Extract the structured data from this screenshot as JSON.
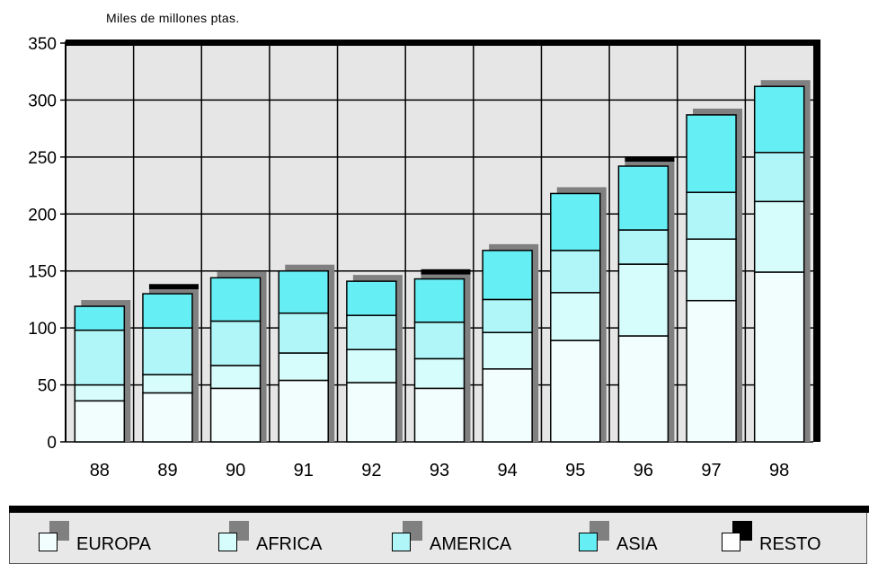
{
  "unit_label": "Miles de millones ptas.",
  "colors": {
    "EUROPA": "#f2fdfd",
    "AFRICA": "#d6fcfc",
    "AMERICA": "#b0f6f8",
    "ASIA": "#66eef5",
    "RESTO": "#ffffff",
    "shadow": "#808080",
    "resto_shadow": "#000000",
    "plot_bg": "#e6e6e6"
  },
  "chart_data": {
    "type": "bar",
    "stacked": true,
    "title": "",
    "ylabel": "Miles de millones ptas.",
    "xlabel": "",
    "categories": [
      "88",
      "89",
      "90",
      "91",
      "92",
      "93",
      "94",
      "95",
      "96",
      "97",
      "98"
    ],
    "ylim": [
      0,
      350
    ],
    "yticks": [
      0,
      50,
      100,
      150,
      200,
      250,
      300,
      350
    ],
    "grid": true,
    "legend_position": "bottom",
    "series": [
      {
        "name": "EUROPA",
        "values": [
          36,
          43,
          47,
          54,
          52,
          47,
          64,
          89,
          93,
          124,
          149
        ]
      },
      {
        "name": "AFRICA",
        "values": [
          14,
          16,
          20,
          24,
          29,
          26,
          32,
          42,
          63,
          54,
          62
        ]
      },
      {
        "name": "AMERICA",
        "values": [
          48,
          41,
          39,
          35,
          30,
          32,
          29,
          37,
          30,
          41,
          43
        ]
      },
      {
        "name": "ASIA",
        "values": [
          21,
          30,
          38,
          37,
          30,
          38,
          43,
          50,
          56,
          68,
          58
        ]
      },
      {
        "name": "RESTO",
        "values": [
          0,
          3,
          0,
          0,
          0,
          3,
          0,
          0,
          3,
          0,
          0
        ]
      }
    ]
  },
  "legend": [
    {
      "label": "EUROPA"
    },
    {
      "label": "AFRICA"
    },
    {
      "label": "AMERICA"
    },
    {
      "label": "ASIA"
    },
    {
      "label": "RESTO"
    }
  ]
}
